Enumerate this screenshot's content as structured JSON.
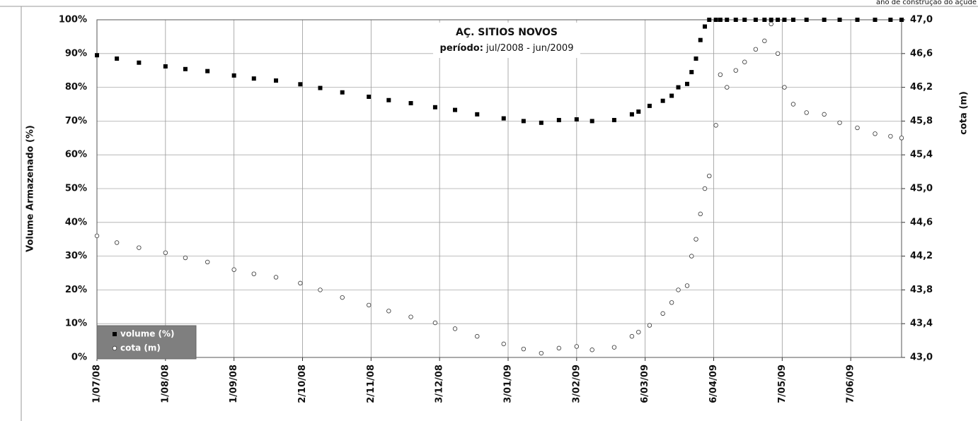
{
  "chart_data": {
    "type": "scatter",
    "title": "AÇ. SITIOS NOVOS",
    "subtitle_label": "período:",
    "subtitle": "jul/2008 - jun/2009",
    "corner_note": "ano de construção do açude",
    "ylabel": "Volume Armazenado (%)",
    "y2label": "cota (m)",
    "legend": "lower left",
    "x": [
      "2008-07-01",
      "2008-07-10",
      "2008-07-20",
      "2008-08-01",
      "2008-08-10",
      "2008-08-20",
      "2008-09-01",
      "2008-09-10",
      "2008-09-20",
      "2008-10-01",
      "2008-10-10",
      "2008-10-20",
      "2008-11-01",
      "2008-11-10",
      "2008-11-20",
      "2008-12-01",
      "2008-12-10",
      "2008-12-20",
      "2009-01-01",
      "2009-01-10",
      "2009-01-18",
      "2009-01-26",
      "2009-02-03",
      "2009-02-10",
      "2009-02-20",
      "2009-02-28",
      "2009-03-03",
      "2009-03-08",
      "2009-03-14",
      "2009-03-18",
      "2009-03-21",
      "2009-03-25",
      "2009-03-27",
      "2009-03-29",
      "2009-03-31",
      "2009-04-02",
      "2009-04-04",
      "2009-04-07",
      "2009-04-09",
      "2009-04-12",
      "2009-04-16",
      "2009-04-20",
      "2009-04-25",
      "2009-04-29",
      "2009-05-02",
      "2009-05-05",
      "2009-05-08",
      "2009-05-12",
      "2009-05-18",
      "2009-05-26",
      "2009-06-02",
      "2009-06-10",
      "2009-06-18",
      "2009-06-25",
      "2009-06-30"
    ],
    "series": [
      {
        "name": "volume (%)",
        "color": "#000000",
        "marker": "square",
        "values": [
          89.5,
          88.5,
          87.3,
          86.2,
          85.4,
          84.8,
          83.5,
          82.6,
          82.0,
          80.9,
          79.8,
          78.5,
          77.2,
          76.2,
          75.3,
          74.1,
          73.3,
          72.0,
          70.8,
          70.0,
          69.5,
          70.3,
          70.5,
          70.0,
          70.3,
          72.0,
          72.8,
          74.5,
          76.0,
          77.5,
          80.0,
          81.0,
          84.5,
          88.5,
          94,
          98,
          100,
          100,
          100,
          100,
          100,
          100,
          100,
          100,
          100,
          100,
          100,
          100,
          100,
          100,
          100,
          100,
          100,
          100,
          100
        ]
      },
      {
        "name": "cota (m)",
        "color": "#ffffff",
        "marker": "circle",
        "axis": "y2",
        "values": [
          44.44,
          44.36,
          44.3,
          44.24,
          44.18,
          44.13,
          44.04,
          43.99,
          43.95,
          43.88,
          43.8,
          43.71,
          43.62,
          43.55,
          43.48,
          43.41,
          43.34,
          43.25,
          43.16,
          43.1,
          43.05,
          43.11,
          43.13,
          43.09,
          43.12,
          43.25,
          43.3,
          43.38,
          43.52,
          43.65,
          43.8,
          43.85,
          44.2,
          44.4,
          44.7,
          45.0,
          45.15,
          45.75,
          46.35,
          46.2,
          46.4,
          46.5,
          46.65,
          46.75,
          46.95,
          46.6,
          46.2,
          46.0,
          45.9,
          45.88,
          45.78,
          45.72,
          45.65,
          45.62,
          45.6
        ]
      }
    ],
    "xlim": [
      "2008-07-01",
      "2009-06-30"
    ],
    "xticks": [
      {
        "value": "2008-07-01",
        "label": "1/07/08"
      },
      {
        "value": "2008-08-01",
        "label": "1/08/08"
      },
      {
        "value": "2008-09-01",
        "label": "1/09/08"
      },
      {
        "value": "2008-10-02",
        "label": "2/10/08"
      },
      {
        "value": "2008-11-02",
        "label": "2/11/08"
      },
      {
        "value": "2008-12-03",
        "label": "3/12/08"
      },
      {
        "value": "2009-01-03",
        "label": "3/01/09"
      },
      {
        "value": "2009-02-03",
        "label": "3/02/09"
      },
      {
        "value": "2009-03-06",
        "label": "6/03/09"
      },
      {
        "value": "2009-04-06",
        "label": "6/04/09"
      },
      {
        "value": "2009-05-07",
        "label": "7/05/09"
      },
      {
        "value": "2009-06-07",
        "label": "7/06/09"
      }
    ],
    "ylim": [
      0,
      100
    ],
    "yticks": [
      {
        "value": 0,
        "label": "0%"
      },
      {
        "value": 10,
        "label": "10%"
      },
      {
        "value": 20,
        "label": "20%"
      },
      {
        "value": 30,
        "label": "30%"
      },
      {
        "value": 40,
        "label": "40%"
      },
      {
        "value": 50,
        "label": "50%"
      },
      {
        "value": 60,
        "label": "60%"
      },
      {
        "value": 70,
        "label": "70%"
      },
      {
        "value": 80,
        "label": "80%"
      },
      {
        "value": 90,
        "label": "90%"
      },
      {
        "value": 100,
        "label": "100%"
      }
    ],
    "y2lim": [
      43.0,
      47.0
    ],
    "y2ticks": [
      {
        "value": 43.0,
        "label": "43,0"
      },
      {
        "value": 43.4,
        "label": "43,4"
      },
      {
        "value": 43.8,
        "label": "43,8"
      },
      {
        "value": 44.2,
        "label": "44,2"
      },
      {
        "value": 44.6,
        "label": "44,6"
      },
      {
        "value": 45.0,
        "label": "45,0"
      },
      {
        "value": 45.4,
        "label": "45,4"
      },
      {
        "value": 45.8,
        "label": "45,8"
      },
      {
        "value": 46.2,
        "label": "46,2"
      },
      {
        "value": 46.6,
        "label": "46,6"
      },
      {
        "value": 47.0,
        "label": "47,0"
      }
    ],
    "grid": true
  }
}
